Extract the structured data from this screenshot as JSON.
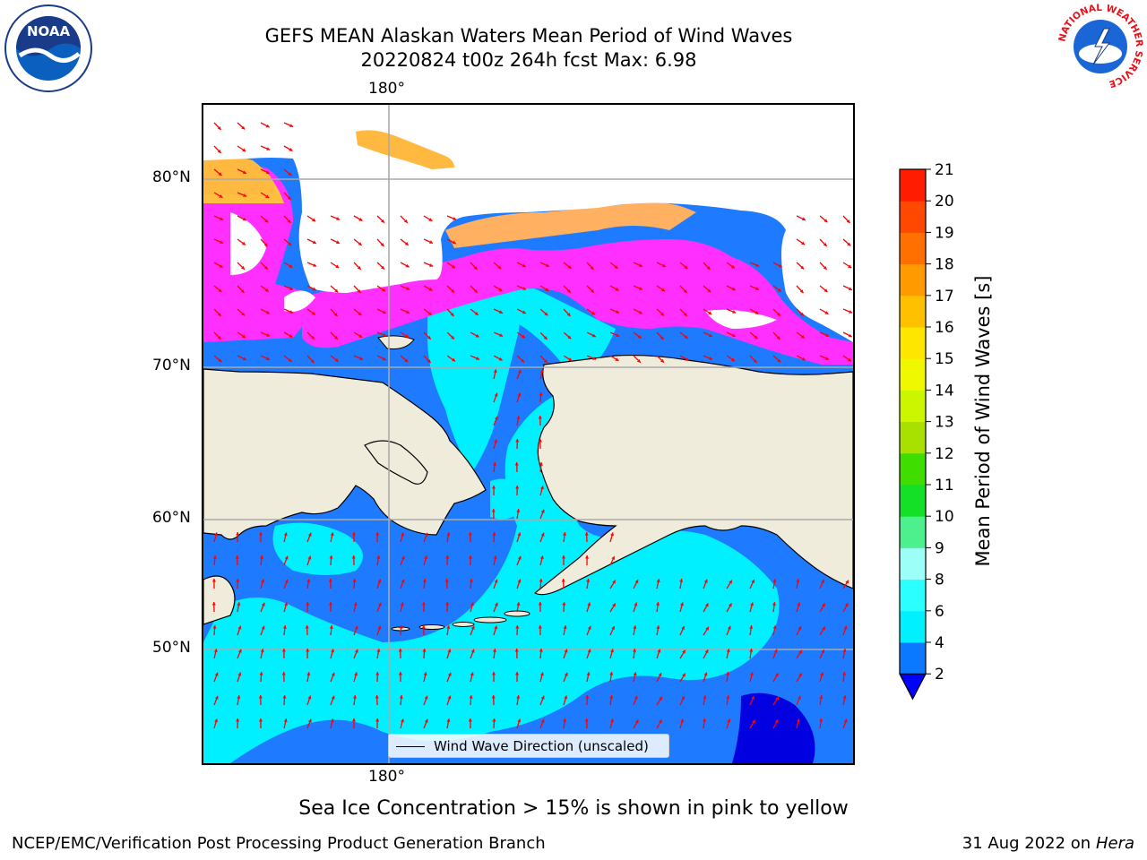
{
  "title": {
    "line1": "GEFS MEAN Alaskan Waters Mean Period of Wind Waves",
    "line2": "20220824 t00z 264h fcst   Max: 6.98"
  },
  "map": {
    "lon_label_top": "180°",
    "lon_label_bottom": "180°",
    "lat_labels": [
      "80°N",
      "70°N",
      "60°N",
      "50°N"
    ],
    "legend_text": "Wind Wave Direction (unscaled)",
    "arrow_color": "#ff0000",
    "land_color": "#efecdc",
    "ocean_color": "#1e7bff"
  },
  "colorbar": {
    "label": "Mean Period of Wind Waves [s]",
    "ticks": [
      "2",
      "4",
      "6",
      "8",
      "9",
      "10",
      "11",
      "12",
      "13",
      "14",
      "15",
      "16",
      "17",
      "18",
      "19",
      "20",
      "21"
    ],
    "colors": [
      "#0a78ff",
      "#00f0ff",
      "#2cffff",
      "#9cfff8",
      "#4cf08c",
      "#14e028",
      "#40dd00",
      "#a8e000",
      "#ccf500",
      "#f0f800",
      "#ffe600",
      "#ffc000",
      "#ff9a00",
      "#ff7000",
      "#ff4800",
      "#ff1c00"
    ],
    "under_color": "#0000ff"
  },
  "note": "Sea Ice Concentration > 15% is shown in pink to yellow",
  "footer": {
    "left": "NCEP/EMC/Verification Post Processing Product Generation Branch",
    "right_date": "31 Aug 2022 on",
    "right_machine": "Hera"
  },
  "logos": {
    "noaa": "NOAA",
    "nws": "NATIONAL WEATHER SERVICE"
  }
}
